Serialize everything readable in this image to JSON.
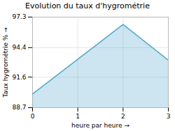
{
  "chart_data": {
    "type": "area",
    "title": "Evolution du taux d'hygrométrie",
    "x": [
      0,
      2,
      3
    ],
    "values": [
      90.0,
      96.6,
      93.2
    ],
    "color": "#55aacc",
    "xlabel": "heure par heure",
    "ylabel": "Taux hygrométrie %",
    "xlim": [
      0,
      3
    ],
    "ylim": [
      88.7,
      97.3
    ],
    "xticks": [
      0,
      1,
      2,
      3
    ],
    "yticks": [
      88.7,
      91.6,
      94.4,
      97.3
    ],
    "grid": true
  }
}
